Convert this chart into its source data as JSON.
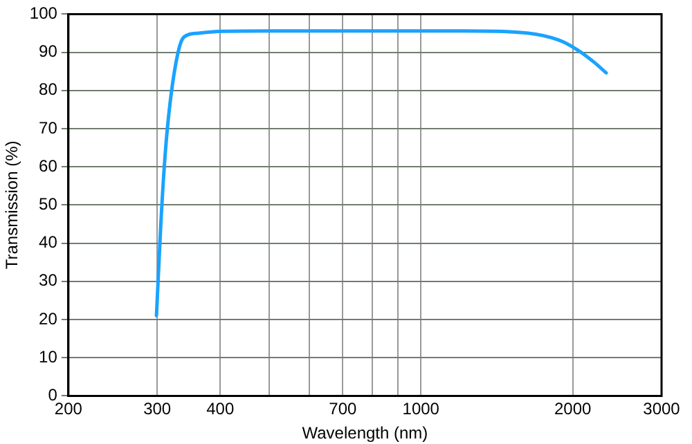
{
  "chart_data": {
    "type": "line",
    "xlabel": "Wavelength (nm)",
    "ylabel": "Transmission (%)",
    "log": "x",
    "x": [
      299,
      305,
      311,
      318,
      330,
      339,
      361,
      403,
      500,
      700,
      1000,
      1216,
      1577,
      1876,
      2045,
      2200,
      2330
    ],
    "series": [
      {
        "color": "#1aa3ff",
        "values": [
          21,
          45,
          63,
          76.5,
          90,
          94,
          95,
          95.5,
          95.6,
          95.6,
          95.6,
          95.6,
          95.2,
          93.2,
          90.6,
          87.5,
          84.6
        ]
      }
    ],
    "xlim": [
      200,
      3000
    ],
    "xticks": [
      200,
      300,
      400,
      {
        "value": 500,
        "label": null
      },
      {
        "value": 600,
        "label": null
      },
      700,
      {
        "value": 800,
        "label": null
      },
      {
        "value": 900,
        "label": null
      },
      1000,
      2000,
      3000
    ],
    "ylim": [
      0,
      100
    ],
    "yticks": [
      0,
      10,
      20,
      30,
      40,
      50,
      60,
      70,
      80,
      90,
      100
    ],
    "grid": true,
    "legend": false,
    "marker": "none",
    "line_style": "solid"
  }
}
